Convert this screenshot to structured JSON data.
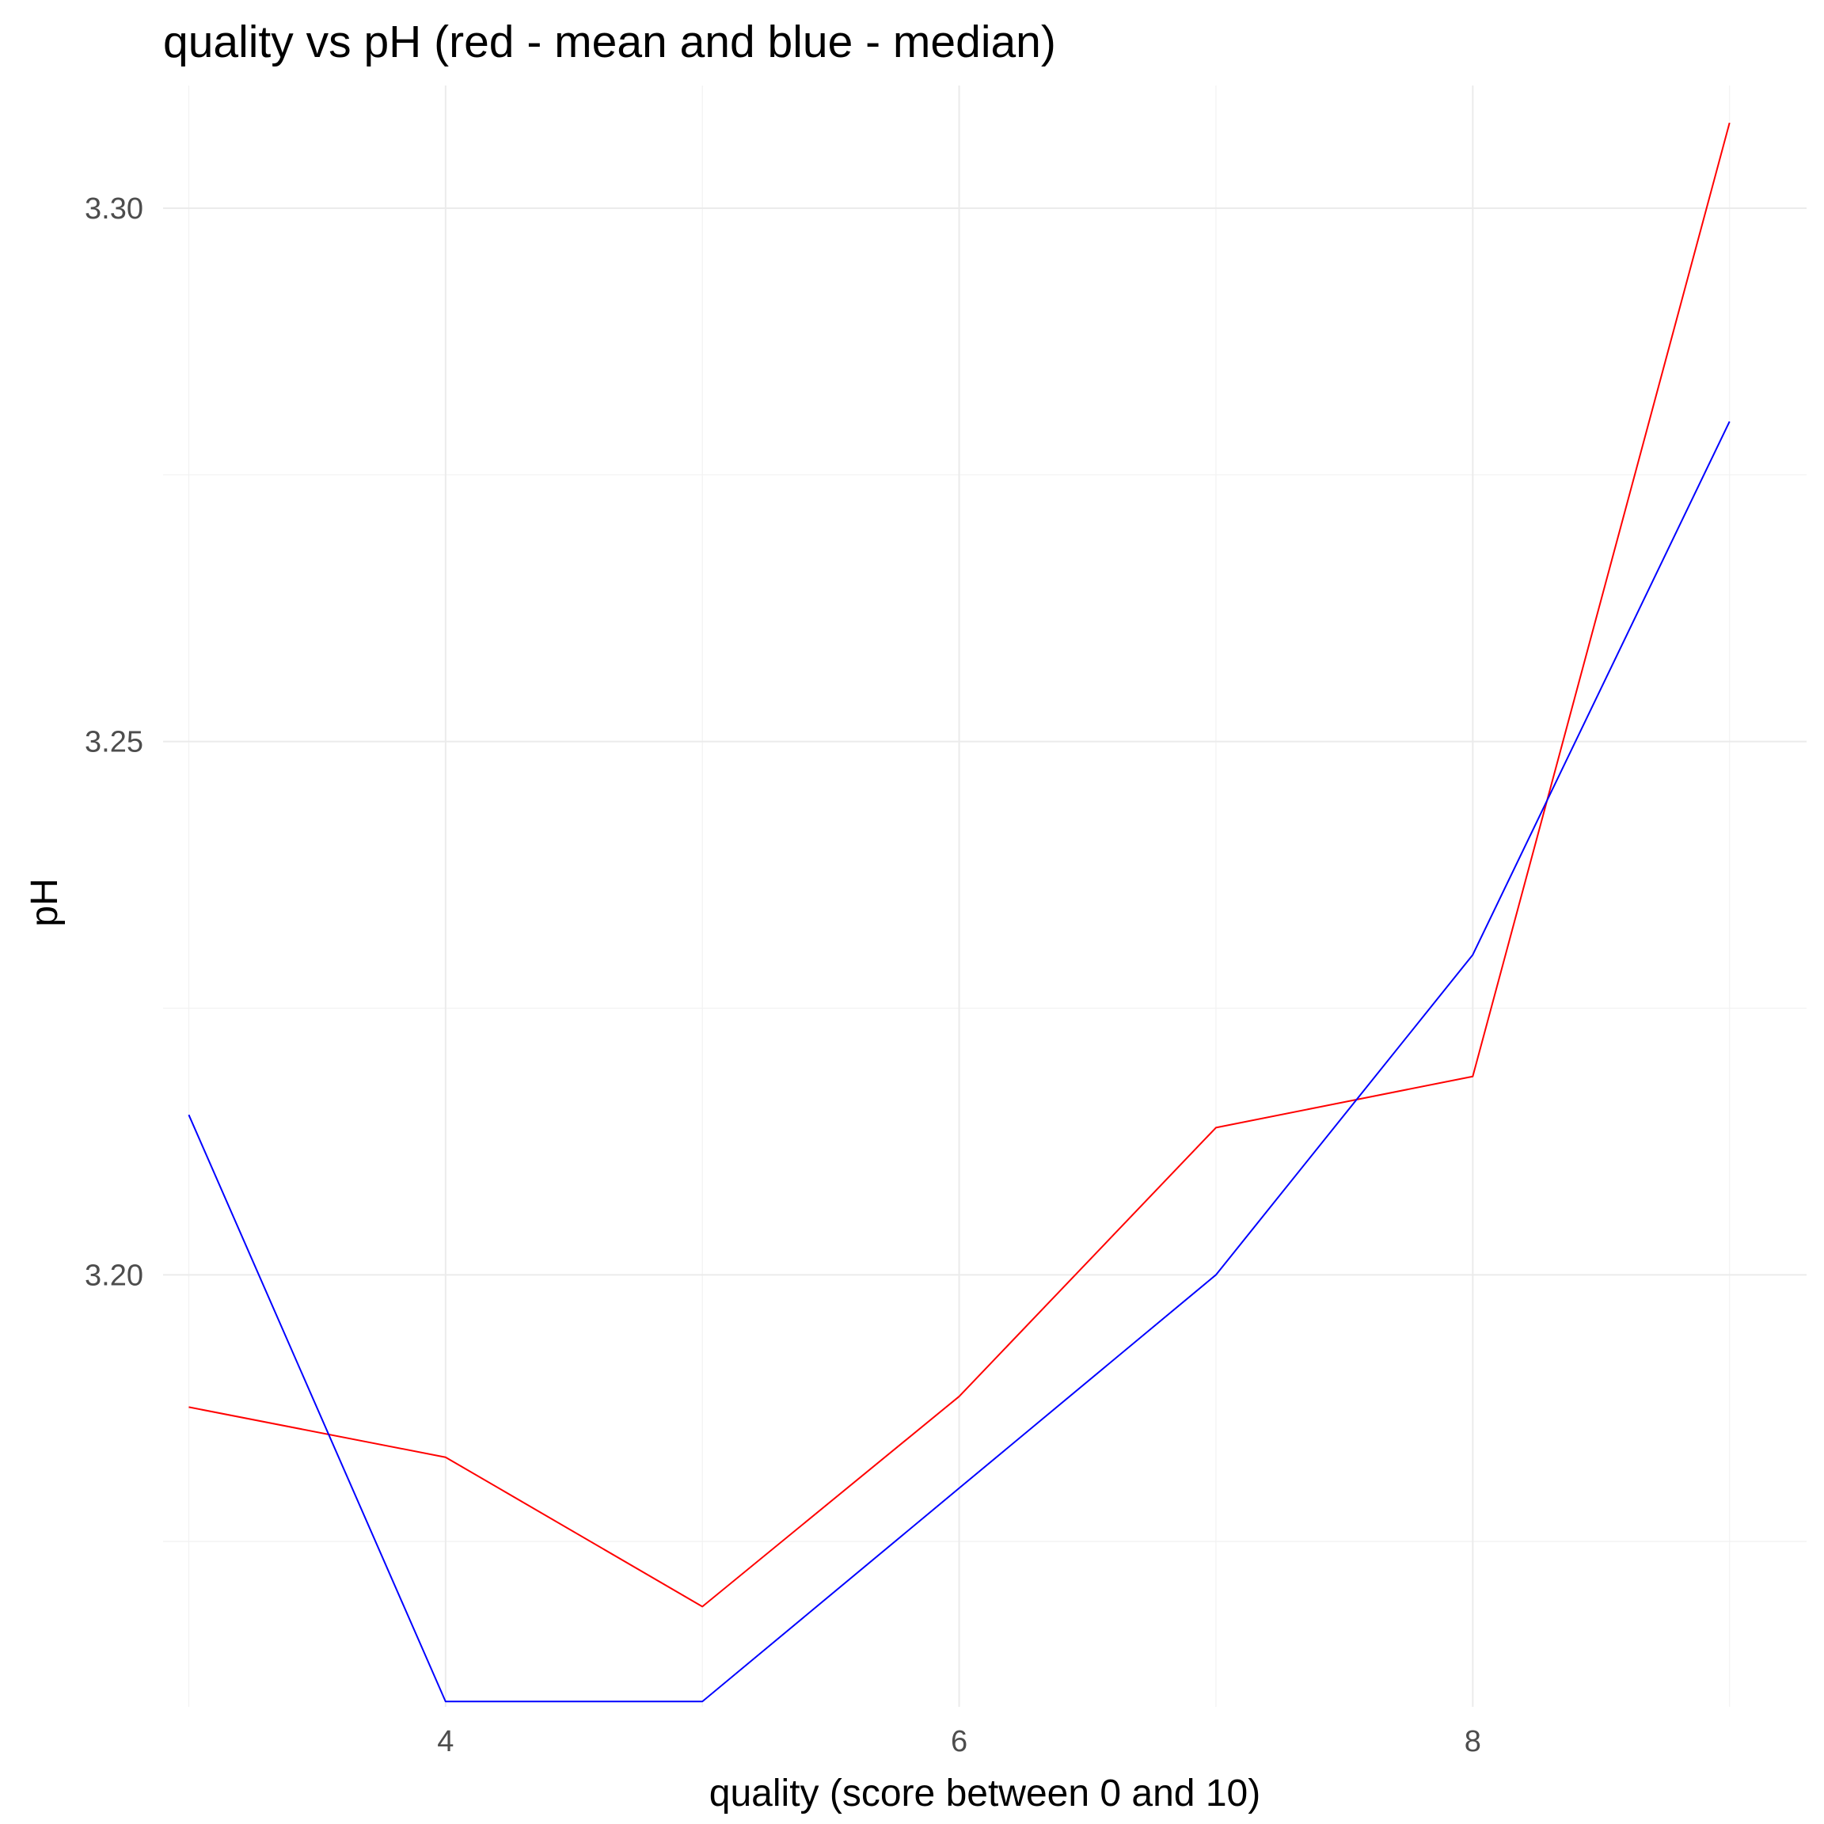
{
  "chart_data": {
    "type": "line",
    "title": "quality vs pH (red - mean and blue - median)",
    "xlabel": "quality (score between 0 and 10)",
    "ylabel": "pH",
    "x": [
      3,
      4,
      5,
      6,
      7,
      8,
      9
    ],
    "xlim": [
      2.9,
      9.3
    ],
    "ylim": [
      3.1595,
      3.3115
    ],
    "x_ticks": [
      4,
      6,
      8
    ],
    "x_tick_labels": [
      "4",
      "6",
      "8"
    ],
    "x_minor_ticks": [
      3,
      5,
      7,
      9
    ],
    "y_ticks": [
      3.2,
      3.25,
      3.3
    ],
    "y_tick_labels": [
      "3.20",
      "3.25",
      "3.30"
    ],
    "y_minor_ticks": [
      3.175,
      3.225,
      3.275
    ],
    "grid": true,
    "legend": "none",
    "series": [
      {
        "name": "mean",
        "color": "#ff0000",
        "values": [
          3.1876,
          3.1829,
          3.1689,
          3.1886,
          3.2138,
          3.2186,
          3.308
        ]
      },
      {
        "name": "median",
        "color": "#0000ff",
        "values": [
          3.215,
          3.16,
          3.16,
          3.18,
          3.2,
          3.23,
          3.28
        ]
      }
    ]
  }
}
